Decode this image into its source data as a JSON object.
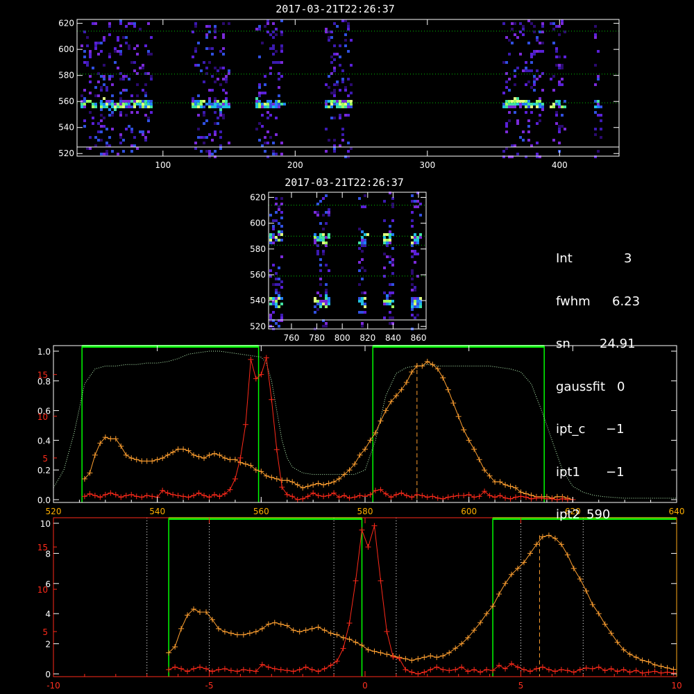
{
  "colors": {
    "bg": "#000000",
    "axis": "#ffffff",
    "green": "#00ff00",
    "red": "#ff2a1a",
    "orange": "#ffa030",
    "ticks_bottom": "#ff3020",
    "dotted_green": "#00c800",
    "dotted_yellow": "#e0e000",
    "white": "#ffffff"
  },
  "info": {
    "rows": [
      {
        "key": "Int",
        "value": "3"
      },
      {
        "key": "fwhm",
        "value": "6.23"
      },
      {
        "key": "sn",
        "value": "24.91"
      },
      {
        "key": "gaussfit",
        "value": "0"
      },
      {
        "key": "ipt_c",
        "value": "−1"
      },
      {
        "key": "ipt1",
        "value": "−1"
      },
      {
        "key": "ipt2",
        "value": "590"
      }
    ]
  },
  "chart_data": [
    {
      "type": "heatmap",
      "title": "2017-03-21T22:26:37",
      "xlim": [
        35,
        445
      ],
      "ylim": [
        518,
        623
      ],
      "xticks": [
        100,
        200,
        300,
        400
      ],
      "yticks": [
        520,
        540,
        560,
        580,
        600,
        620
      ],
      "hlines": [
        {
          "y": 614,
          "style": "dotted"
        },
        {
          "y": 581,
          "style": "dotted"
        },
        {
          "y": 559,
          "style": "dotted"
        },
        {
          "y": 525,
          "style": "solid"
        }
      ],
      "columns": [
        {
          "x": 50,
          "w": 25
        },
        {
          "x": 78,
          "w": 25
        },
        {
          "x": 135,
          "w": 28
        },
        {
          "x": 180,
          "w": 20
        },
        {
          "x": 232,
          "w": 20
        },
        {
          "x": 372,
          "w": 30
        },
        {
          "x": 398,
          "w": 10
        },
        {
          "x": 428,
          "w": 5
        }
      ]
    },
    {
      "type": "heatmap",
      "title": "2017-03-21T22:26:37",
      "xlim": [
        742,
        866
      ],
      "ylim": [
        518,
        624
      ],
      "xticks": [
        760,
        780,
        800,
        820,
        840,
        860
      ],
      "yticks": [
        520,
        540,
        560,
        580,
        600,
        620
      ],
      "hlines": [
        {
          "y": 614,
          "style": "dotted"
        },
        {
          "y": 590,
          "style": "dotted"
        },
        {
          "y": 583,
          "style": "dotted"
        },
        {
          "y": 559,
          "style": "dotted"
        },
        {
          "y": 525,
          "style": "solid"
        }
      ],
      "columns": [
        {
          "x": 747,
          "w": 10
        },
        {
          "x": 783,
          "w": 12
        },
        {
          "x": 815,
          "w": 6
        },
        {
          "x": 836,
          "w": 8
        },
        {
          "x": 857,
          "w": 8
        }
      ]
    },
    {
      "type": "line",
      "xlim": [
        520,
        640
      ],
      "xticks": [
        520,
        540,
        560,
        580,
        600,
        620,
        640
      ],
      "left_ticks_white": [
        "0.0",
        "0.2",
        "0.4",
        "0.6",
        "0.8",
        "1.0"
      ],
      "left_ticks_red": [
        "5",
        "10",
        "15"
      ],
      "green_bands": [
        [
          525.5,
          559.5
        ],
        [
          581.5,
          614.5
        ]
      ],
      "vline_dashed": 590,
      "filter_curve": {
        "x": [
          520,
          522,
          524,
          526,
          528,
          530,
          532,
          534,
          536,
          538,
          540,
          542,
          544,
          546,
          548,
          550,
          552,
          554,
          556,
          558,
          560,
          561,
          562,
          563,
          564,
          565,
          566,
          568,
          570,
          572,
          574,
          576,
          578,
          580,
          582,
          584,
          586,
          588,
          590,
          592,
          594,
          596,
          598,
          600,
          602,
          604,
          606,
          608,
          610,
          612,
          614,
          616,
          618,
          620,
          622,
          624,
          626,
          630,
          635,
          640
        ],
        "y": [
          0.08,
          0.2,
          0.45,
          0.78,
          0.88,
          0.9,
          0.9,
          0.91,
          0.91,
          0.92,
          0.92,
          0.93,
          0.95,
          0.98,
          0.99,
          1.0,
          1.0,
          0.99,
          0.98,
          0.97,
          0.96,
          0.92,
          0.8,
          0.6,
          0.4,
          0.28,
          0.22,
          0.18,
          0.17,
          0.17,
          0.17,
          0.17,
          0.17,
          0.2,
          0.4,
          0.7,
          0.85,
          0.89,
          0.9,
          0.91,
          0.9,
          0.9,
          0.9,
          0.9,
          0.9,
          0.9,
          0.89,
          0.88,
          0.86,
          0.78,
          0.6,
          0.4,
          0.2,
          0.09,
          0.05,
          0.03,
          0.02,
          0.01,
          0.01,
          0.01
        ]
      },
      "orange_series": {
        "x": [
          526,
          527,
          528,
          529,
          530,
          531,
          532,
          533,
          534,
          535,
          536,
          537,
          538,
          539,
          540,
          541,
          542,
          543,
          544,
          545,
          546,
          547,
          548,
          549,
          550,
          551,
          552,
          553,
          554,
          555,
          556,
          557,
          558,
          559,
          560,
          561,
          562,
          563,
          564,
          565,
          566,
          567,
          568,
          569,
          570,
          571,
          572,
          573,
          574,
          575,
          576,
          577,
          578,
          579,
          580,
          581,
          582,
          583,
          584,
          585,
          586,
          587,
          588,
          589,
          590,
          591,
          592,
          593,
          594,
          595,
          596,
          597,
          598,
          599,
          600,
          601,
          602,
          603,
          604,
          605,
          606,
          607,
          608,
          609,
          610,
          611,
          612,
          613,
          614,
          615,
          616,
          617,
          618,
          619,
          620
        ],
        "y": [
          0.14,
          0.18,
          0.3,
          0.38,
          0.42,
          0.41,
          0.41,
          0.36,
          0.3,
          0.28,
          0.27,
          0.26,
          0.26,
          0.26,
          0.27,
          0.28,
          0.3,
          0.32,
          0.34,
          0.34,
          0.33,
          0.3,
          0.29,
          0.28,
          0.3,
          0.31,
          0.3,
          0.28,
          0.27,
          0.27,
          0.25,
          0.24,
          0.23,
          0.2,
          0.19,
          0.16,
          0.15,
          0.14,
          0.13,
          0.13,
          0.12,
          0.1,
          0.08,
          0.09,
          0.1,
          0.11,
          0.1,
          0.11,
          0.12,
          0.14,
          0.17,
          0.2,
          0.24,
          0.3,
          0.34,
          0.4,
          0.45,
          0.53,
          0.6,
          0.66,
          0.7,
          0.74,
          0.79,
          0.86,
          0.9,
          0.9,
          0.93,
          0.91,
          0.88,
          0.82,
          0.74,
          0.65,
          0.56,
          0.47,
          0.4,
          0.34,
          0.27,
          0.2,
          0.16,
          0.12,
          0.12,
          0.1,
          0.09,
          0.08,
          0.05,
          0.04,
          0.03,
          0.02,
          0.02,
          0.02,
          0.01,
          0.02,
          0.02,
          0.01,
          0.0
        ]
      },
      "red_series": {
        "x": [
          526,
          527,
          528,
          529,
          530,
          531,
          532,
          533,
          534,
          535,
          536,
          537,
          538,
          539,
          540,
          541,
          542,
          543,
          544,
          545,
          546,
          547,
          548,
          549,
          550,
          551,
          552,
          553,
          554,
          555,
          556,
          557,
          558,
          559,
          560,
          561,
          562,
          563,
          564,
          565,
          566,
          567,
          568,
          569,
          570,
          571,
          572,
          573,
          574,
          575,
          576,
          577,
          578,
          579,
          580,
          581,
          582,
          583,
          584,
          585,
          586,
          587,
          588,
          589,
          590,
          591,
          592,
          593,
          594,
          595,
          596,
          597,
          598,
          599,
          600,
          601,
          602,
          603,
          604,
          605,
          606,
          607,
          608,
          609,
          610,
          611,
          612,
          613,
          614,
          615,
          616,
          617,
          618,
          619,
          620
        ],
        "y": [
          0.4,
          0.7,
          0.5,
          0.3,
          0.6,
          0.8,
          0.6,
          0.3,
          0.5,
          0.6,
          0.4,
          0.3,
          0.5,
          0.4,
          0.3,
          1.1,
          0.8,
          0.6,
          0.5,
          0.4,
          0.3,
          0.5,
          0.8,
          0.5,
          0.3,
          0.6,
          0.4,
          0.7,
          1.2,
          2.5,
          5.0,
          9.0,
          16.8,
          14.5,
          15.0,
          17.0,
          12.0,
          6.0,
          1.5,
          0.6,
          0.4,
          0.0,
          0.1,
          0.4,
          0.8,
          0.5,
          0.4,
          0.5,
          0.8,
          0.3,
          0.5,
          0.2,
          0.3,
          0.5,
          0.4,
          0.6,
          1.1,
          1.2,
          0.7,
          0.3,
          0.6,
          0.8,
          0.5,
          0.3,
          0.6,
          0.5,
          0.3,
          0.4,
          0.2,
          0.1,
          0.3,
          0.4,
          0.5,
          0.5,
          0.6,
          0.3,
          0.4,
          1.0,
          0.5,
          0.3,
          0.5,
          0.2,
          0.1,
          0.3,
          0.4,
          0.3,
          0.1,
          0.2,
          0.2,
          0.1,
          0.1,
          0.0,
          0.1,
          0.0,
          0.0
        ]
      }
    },
    {
      "type": "line",
      "xlim": [
        -10,
        10
      ],
      "xticks": [
        -10,
        -5,
        0,
        5,
        10
      ],
      "left_ticks_white": [
        "0",
        "2",
        "4",
        "6",
        "8",
        "10"
      ],
      "left_ticks_red": [
        "5",
        "10",
        "15"
      ],
      "green_bands": [
        [
          -6.3,
          -0.1
        ],
        [
          4.1,
          10.0
        ]
      ],
      "vlines_dotted": [
        -7,
        -5,
        -1,
        1,
        5,
        7
      ],
      "vline_dashed": 5.6,
      "orange_series": {
        "x": [
          -6.3,
          -6.1,
          -5.9,
          -5.7,
          -5.5,
          -5.3,
          -5.1,
          -4.9,
          -4.7,
          -4.5,
          -4.3,
          -4.1,
          -3.9,
          -3.7,
          -3.5,
          -3.3,
          -3.1,
          -2.9,
          -2.7,
          -2.5,
          -2.3,
          -2.1,
          -1.9,
          -1.7,
          -1.5,
          -1.3,
          -1.1,
          -0.9,
          -0.7,
          -0.5,
          -0.3,
          -0.1,
          0.1,
          0.3,
          0.5,
          0.7,
          0.9,
          1.1,
          1.3,
          1.5,
          1.7,
          1.9,
          2.1,
          2.3,
          2.5,
          2.7,
          2.9,
          3.1,
          3.3,
          3.5,
          3.7,
          3.9,
          4.1,
          4.3,
          4.5,
          4.7,
          4.9,
          5.1,
          5.3,
          5.5,
          5.7,
          5.9,
          6.1,
          6.3,
          6.5,
          6.7,
          6.9,
          7.1,
          7.3,
          7.5,
          7.7,
          7.9,
          8.1,
          8.3,
          8.5,
          8.7,
          8.9,
          9.1,
          9.3,
          9.5,
          9.7,
          9.9
        ],
        "y": [
          1.4,
          1.8,
          3.0,
          3.9,
          4.3,
          4.1,
          4.1,
          3.6,
          3.0,
          2.8,
          2.7,
          2.6,
          2.6,
          2.7,
          2.8,
          3.0,
          3.3,
          3.4,
          3.3,
          3.2,
          2.9,
          2.8,
          2.9,
          3.0,
          3.1,
          2.9,
          2.7,
          2.6,
          2.4,
          2.3,
          2.1,
          1.9,
          1.6,
          1.5,
          1.4,
          1.3,
          1.2,
          1.1,
          1.0,
          0.9,
          1.0,
          1.1,
          1.2,
          1.1,
          1.2,
          1.4,
          1.7,
          2.0,
          2.4,
          2.9,
          3.4,
          4.0,
          4.5,
          5.3,
          6.0,
          6.6,
          7.0,
          7.4,
          8.0,
          8.6,
          9.1,
          9.2,
          9.0,
          8.6,
          7.9,
          7.0,
          6.3,
          5.5,
          4.6,
          4.0,
          3.3,
          2.7,
          2.1,
          1.6,
          1.3,
          1.1,
          0.9,
          0.8,
          0.6,
          0.5,
          0.4,
          0.3
        ]
      },
      "red_series": {
        "x": [
          -6.3,
          -6.1,
          -5.9,
          -5.7,
          -5.5,
          -5.3,
          -5.1,
          -4.9,
          -4.7,
          -4.5,
          -4.3,
          -4.1,
          -3.9,
          -3.7,
          -3.5,
          -3.3,
          -3.1,
          -2.9,
          -2.7,
          -2.5,
          -2.3,
          -2.1,
          -1.9,
          -1.7,
          -1.5,
          -1.3,
          -1.1,
          -0.9,
          -0.7,
          -0.5,
          -0.3,
          -0.1,
          0.1,
          0.3,
          0.5,
          0.7,
          0.9,
          1.1,
          1.3,
          1.5,
          1.7,
          1.9,
          2.1,
          2.3,
          2.5,
          2.7,
          2.9,
          3.1,
          3.3,
          3.5,
          3.7,
          3.9,
          4.1,
          4.3,
          4.5,
          4.7,
          4.9,
          5.1,
          5.3,
          5.5,
          5.7,
          5.9,
          6.1,
          6.3,
          6.5,
          6.7,
          6.9,
          7.1,
          7.3,
          7.5,
          7.7,
          7.9,
          8.1,
          8.3,
          8.5,
          8.7,
          8.9,
          9.1,
          9.3,
          9.5,
          9.7,
          9.9
        ],
        "y": [
          0.5,
          0.8,
          0.6,
          0.3,
          0.6,
          0.8,
          0.6,
          0.3,
          0.5,
          0.6,
          0.4,
          0.3,
          0.5,
          0.4,
          0.3,
          1.1,
          0.8,
          0.6,
          0.5,
          0.4,
          0.3,
          0.5,
          0.8,
          0.5,
          0.3,
          0.6,
          1.0,
          1.5,
          3.0,
          6.0,
          11.0,
          17.0,
          15.0,
          17.5,
          11.0,
          5.0,
          2.0,
          1.8,
          0.5,
          0.2,
          0.0,
          0.2,
          0.5,
          0.8,
          0.5,
          0.4,
          0.5,
          0.8,
          0.3,
          0.5,
          0.2,
          0.5,
          0.4,
          1.0,
          0.6,
          1.2,
          0.8,
          0.5,
          0.3,
          0.6,
          0.8,
          0.5,
          0.3,
          0.5,
          0.4,
          0.2,
          0.5,
          0.7,
          0.6,
          0.8,
          0.4,
          0.6,
          0.3,
          0.5,
          0.2,
          0.4,
          0.1,
          0.2,
          0.3,
          0.1,
          0.2,
          0.1
        ]
      }
    }
  ]
}
